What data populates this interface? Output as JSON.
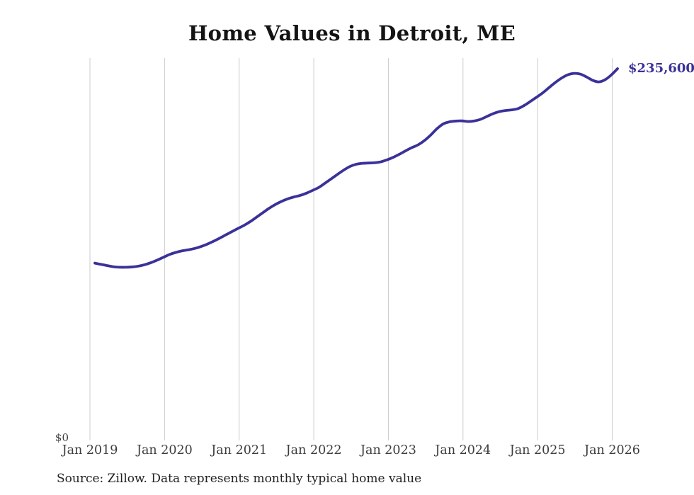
{
  "page": {
    "title": "Home Values in Detroit, ME",
    "source_note": "Source: Zillow. Data represents monthly typical home value"
  },
  "chart_data": {
    "type": "line",
    "title": "Home Values in Detroit, ME",
    "xlabel": "",
    "ylabel": "",
    "x_tick_labels": [
      "Jan 2019",
      "Jan 2020",
      "Jan 2021",
      "Jan 2022",
      "Jan 2023",
      "Jan 2024",
      "Jan 2025",
      "Jan 2026"
    ],
    "x_start": "2019-01",
    "x_end": "2026-01",
    "frequency": "monthly",
    "y_axis": {
      "zero_label": "$0",
      "min": 0,
      "max_visible": 242000
    },
    "grid": "vertical-only",
    "legend": "none",
    "end_label": "$235,600",
    "final_value": 235600,
    "colors": {
      "line": "#3a3199",
      "grid": "#cccccc",
      "tick_label": "#3d3d3d",
      "title": "#141414",
      "source": "#222222",
      "end_label": "#3a3199"
    },
    "series": [
      {
        "name": "Typical home value",
        "color": "#3a3199",
        "values": [
          111900,
          111100,
          110300,
          109600,
          109300,
          109300,
          109500,
          110000,
          110900,
          112200,
          113800,
          115600,
          117400,
          118700,
          119700,
          120400,
          121200,
          122400,
          123900,
          125700,
          127700,
          129800,
          131900,
          134000,
          136000,
          138400,
          141200,
          144000,
          146800,
          149200,
          151200,
          152800,
          154000,
          155000,
          156400,
          158200,
          160100,
          162800,
          165600,
          168400,
          171100,
          173400,
          174800,
          175400,
          175600,
          175800,
          176400,
          177700,
          179300,
          181300,
          183500,
          185500,
          187300,
          190000,
          193500,
          197500,
          200500,
          201800,
          202300,
          202400,
          202000,
          202400,
          203400,
          205200,
          207000,
          208300,
          209000,
          209400,
          210200,
          212200,
          214800,
          217500,
          220300,
          223600,
          226800,
          229600,
          231700,
          232600,
          232200,
          230400,
          228200,
          227200,
          228600,
          231600,
          235600
        ]
      }
    ]
  }
}
